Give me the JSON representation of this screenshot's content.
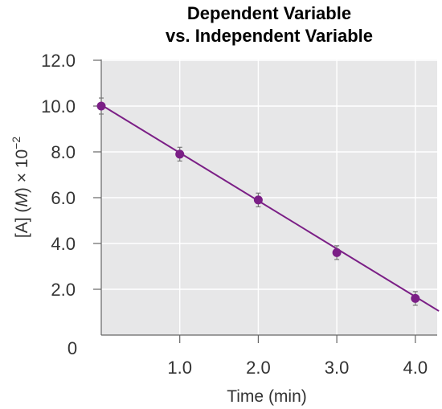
{
  "chart_data": {
    "type": "scatter",
    "title_line1": "Dependent Variable",
    "title_line2": "vs. Independent Variable",
    "xlabel": "Time (min)",
    "ylabel": "[A] (M) × 10⁻²",
    "ylabel_parts": {
      "a": "[A] (",
      "b": "M",
      "c": ") × 10",
      "sup": "−2"
    },
    "x_ticks": [
      "1.0",
      "2.0",
      "3.0",
      "4.0"
    ],
    "x_tick_values": [
      1,
      2,
      3,
      4
    ],
    "y_ticks": [
      "2.0",
      "4.0",
      "6.0",
      "8.0",
      "10.0",
      "12.0"
    ],
    "y_tick_values": [
      2,
      4,
      6,
      8,
      10,
      12
    ],
    "origin_label": "0",
    "xlim": [
      0,
      4.3
    ],
    "ylim": [
      0,
      12
    ],
    "grid": true,
    "series": [
      {
        "x": [
          0,
          1,
          2,
          3,
          4
        ],
        "y": [
          10.0,
          7.9,
          5.9,
          3.6,
          1.6
        ],
        "error": [
          0.35,
          0.3,
          0.3,
          0.3,
          0.3
        ]
      }
    ],
    "fit_line": {
      "x": [
        0,
        4.3
      ],
      "y": [
        10.05,
        1.05
      ]
    },
    "colors": {
      "marker": "#7b1f86",
      "plot_bg": "#e7e7e8",
      "grid": "#ffffff",
      "axis": "#666666"
    }
  }
}
